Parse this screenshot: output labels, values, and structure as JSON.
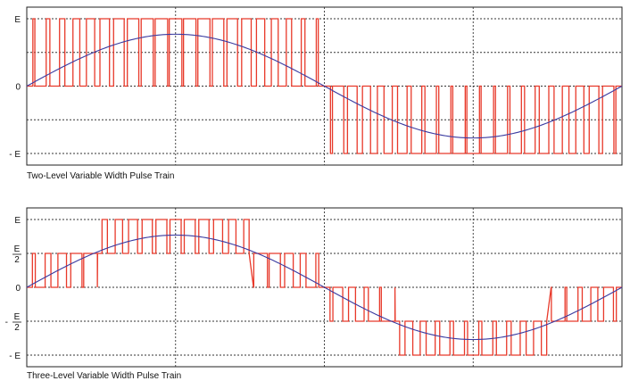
{
  "colors": {
    "pulse": "#e8392a",
    "sine": "#3a3aa0",
    "frame": "#222222",
    "grid": "#333333"
  },
  "chart_data": [
    {
      "type": "line",
      "title": "Two-Level Variable Width Pulse Train",
      "xlabel": "",
      "ylabel": "",
      "x_range": [
        0,
        1
      ],
      "ylim": [
        -1,
        1
      ],
      "y_gridlines": [
        1,
        0.5,
        0,
        -0.5,
        -1
      ],
      "x_gridlines": [
        0.25,
        0.5,
        0.75
      ],
      "y_tick_labels": [
        {
          "value": 1,
          "label": "E"
        },
        {
          "value": 0,
          "label": "0"
        },
        {
          "value": -1,
          "label": "- E"
        }
      ],
      "grid": true,
      "legend": "none",
      "series": [
        {
          "kind": "sine",
          "amplitude": 0.77,
          "cycles": 1
        },
        {
          "kind": "pwm",
          "levels": [
            -1,
            0,
            1
          ],
          "carrier_pulses": 42
        }
      ]
    },
    {
      "type": "line",
      "title": "Three-Level Variable Width Pulse Train",
      "xlabel": "",
      "ylabel": "",
      "x_range": [
        0,
        1
      ],
      "ylim": [
        -1,
        1
      ],
      "y_gridlines": [
        1,
        0.5,
        0,
        -0.5,
        -1
      ],
      "x_gridlines": [
        0.25,
        0.5,
        0.75
      ],
      "y_tick_labels": [
        {
          "value": 1,
          "label": "E",
          "frac": false
        },
        {
          "value": 0.5,
          "num": "E",
          "den": "2",
          "frac": true,
          "sign": ""
        },
        {
          "value": 0,
          "label": "0",
          "frac": false
        },
        {
          "value": -0.5,
          "num": "E",
          "den": "2",
          "frac": true,
          "sign": "-"
        },
        {
          "value": -1,
          "label": "- E",
          "frac": false
        }
      ],
      "grid": true,
      "legend": "none",
      "series": [
        {
          "kind": "sine",
          "amplitude": 0.77,
          "cycles": 1
        },
        {
          "kind": "pwm",
          "levels": [
            -1,
            -0.5,
            0,
            0.5,
            1
          ],
          "carrier_pulses": 42
        }
      ]
    }
  ]
}
